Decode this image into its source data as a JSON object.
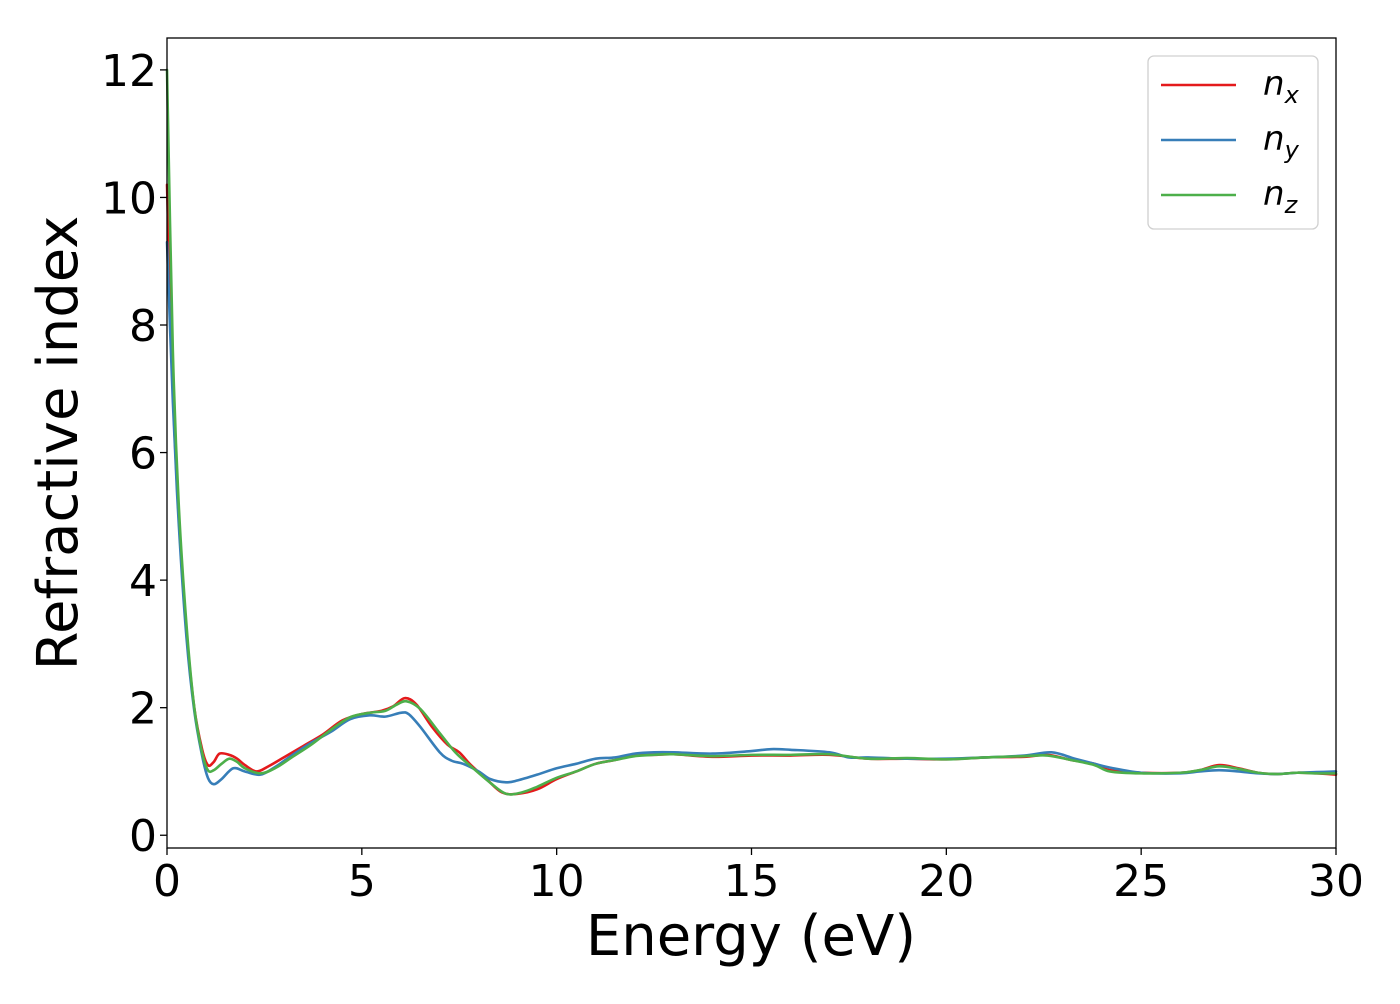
{
  "chart_data": {
    "type": "line",
    "title": "",
    "xlabel": "Energy (eV)",
    "ylabel": "Refractive index",
    "xlim": [
      0,
      30
    ],
    "ylim": [
      -0.2,
      12.5
    ],
    "xticks": [
      0,
      5,
      10,
      15,
      20,
      25,
      30
    ],
    "yticks": [
      0,
      2,
      4,
      6,
      8,
      10,
      12
    ],
    "grid": false,
    "legend_position": "top-right",
    "series": [
      {
        "name": "n_x",
        "label_main": "n",
        "label_sub": "x",
        "color": "#e41a1c",
        "points": [
          [
            0,
            10.2
          ],
          [
            0.15,
            7.0
          ],
          [
            0.3,
            5.0
          ],
          [
            0.5,
            3.2
          ],
          [
            0.7,
            2.0
          ],
          [
            0.9,
            1.35
          ],
          [
            1.05,
            1.1
          ],
          [
            1.2,
            1.15
          ],
          [
            1.35,
            1.28
          ],
          [
            1.6,
            1.26
          ],
          [
            1.8,
            1.2
          ],
          [
            2.0,
            1.1
          ],
          [
            2.3,
            1.0
          ],
          [
            2.6,
            1.08
          ],
          [
            3.0,
            1.22
          ],
          [
            3.5,
            1.4
          ],
          [
            4.0,
            1.58
          ],
          [
            4.5,
            1.8
          ],
          [
            5.0,
            1.9
          ],
          [
            5.5,
            1.95
          ],
          [
            5.8,
            2.02
          ],
          [
            6.1,
            2.15
          ],
          [
            6.4,
            2.05
          ],
          [
            6.8,
            1.7
          ],
          [
            7.2,
            1.42
          ],
          [
            7.5,
            1.3
          ],
          [
            7.8,
            1.1
          ],
          [
            8.2,
            0.88
          ],
          [
            8.6,
            0.67
          ],
          [
            9.0,
            0.65
          ],
          [
            9.5,
            0.72
          ],
          [
            10.0,
            0.88
          ],
          [
            10.5,
            1.0
          ],
          [
            11.0,
            1.12
          ],
          [
            11.5,
            1.18
          ],
          [
            12.0,
            1.25
          ],
          [
            12.5,
            1.26
          ],
          [
            13.0,
            1.27
          ],
          [
            14.0,
            1.23
          ],
          [
            15.0,
            1.25
          ],
          [
            16.0,
            1.25
          ],
          [
            17.0,
            1.26
          ],
          [
            18.0,
            1.2
          ],
          [
            19.0,
            1.2
          ],
          [
            20.0,
            1.19
          ],
          [
            21.0,
            1.22
          ],
          [
            22.0,
            1.23
          ],
          [
            22.6,
            1.26
          ],
          [
            23.2,
            1.18
          ],
          [
            23.8,
            1.12
          ],
          [
            24.2,
            1.02
          ],
          [
            25.0,
            0.98
          ],
          [
            26.0,
            0.98
          ],
          [
            26.5,
            1.02
          ],
          [
            27.0,
            1.1
          ],
          [
            27.5,
            1.05
          ],
          [
            28.0,
            0.98
          ],
          [
            28.5,
            0.96
          ],
          [
            29.0,
            0.98
          ],
          [
            29.5,
            0.97
          ],
          [
            30.0,
            0.95
          ]
        ]
      },
      {
        "name": "n_y",
        "label_main": "n",
        "label_sub": "y",
        "color": "#377eb8",
        "points": [
          [
            0,
            9.3
          ],
          [
            0.15,
            6.8
          ],
          [
            0.3,
            4.9
          ],
          [
            0.5,
            3.1
          ],
          [
            0.7,
            1.95
          ],
          [
            0.9,
            1.25
          ],
          [
            1.05,
            0.9
          ],
          [
            1.2,
            0.8
          ],
          [
            1.4,
            0.88
          ],
          [
            1.7,
            1.05
          ],
          [
            2.0,
            1.0
          ],
          [
            2.4,
            0.95
          ],
          [
            2.8,
            1.08
          ],
          [
            3.2,
            1.25
          ],
          [
            3.7,
            1.45
          ],
          [
            4.2,
            1.62
          ],
          [
            4.7,
            1.82
          ],
          [
            5.2,
            1.88
          ],
          [
            5.6,
            1.86
          ],
          [
            6.0,
            1.92
          ],
          [
            6.2,
            1.9
          ],
          [
            6.5,
            1.7
          ],
          [
            7.0,
            1.3
          ],
          [
            7.3,
            1.17
          ],
          [
            7.6,
            1.12
          ],
          [
            8.0,
            1.0
          ],
          [
            8.3,
            0.88
          ],
          [
            8.7,
            0.83
          ],
          [
            9.0,
            0.86
          ],
          [
            9.5,
            0.95
          ],
          [
            10.0,
            1.05
          ],
          [
            10.5,
            1.12
          ],
          [
            11.0,
            1.2
          ],
          [
            11.5,
            1.22
          ],
          [
            12.0,
            1.28
          ],
          [
            12.5,
            1.3
          ],
          [
            13.0,
            1.3
          ],
          [
            14.0,
            1.28
          ],
          [
            15.0,
            1.32
          ],
          [
            15.5,
            1.35
          ],
          [
            16.0,
            1.34
          ],
          [
            17.0,
            1.3
          ],
          [
            17.5,
            1.22
          ],
          [
            18.0,
            1.22
          ],
          [
            19.0,
            1.2
          ],
          [
            20.0,
            1.2
          ],
          [
            21.0,
            1.22
          ],
          [
            22.0,
            1.25
          ],
          [
            22.7,
            1.3
          ],
          [
            23.3,
            1.2
          ],
          [
            23.8,
            1.12
          ],
          [
            24.2,
            1.06
          ],
          [
            25.0,
            0.98
          ],
          [
            26.0,
            0.97
          ],
          [
            26.5,
            1.0
          ],
          [
            27.0,
            1.02
          ],
          [
            27.5,
            1.0
          ],
          [
            28.0,
            0.97
          ],
          [
            28.5,
            0.96
          ],
          [
            29.0,
            0.98
          ],
          [
            29.5,
            0.99
          ],
          [
            30.0,
            1.0
          ]
        ]
      },
      {
        "name": "n_z",
        "label_main": "n",
        "label_sub": "z",
        "color": "#4daf4a",
        "points": [
          [
            0,
            12.0
          ],
          [
            0.15,
            7.6
          ],
          [
            0.3,
            5.2
          ],
          [
            0.5,
            3.3
          ],
          [
            0.7,
            2.0
          ],
          [
            0.9,
            1.3
          ],
          [
            1.05,
            1.02
          ],
          [
            1.2,
            1.02
          ],
          [
            1.4,
            1.12
          ],
          [
            1.6,
            1.2
          ],
          [
            1.8,
            1.15
          ],
          [
            2.0,
            1.05
          ],
          [
            2.4,
            0.97
          ],
          [
            2.8,
            1.06
          ],
          [
            3.2,
            1.22
          ],
          [
            3.7,
            1.42
          ],
          [
            4.2,
            1.65
          ],
          [
            4.7,
            1.85
          ],
          [
            5.2,
            1.92
          ],
          [
            5.6,
            1.95
          ],
          [
            5.9,
            2.05
          ],
          [
            6.15,
            2.1
          ],
          [
            6.5,
            1.98
          ],
          [
            7.0,
            1.6
          ],
          [
            7.4,
            1.3
          ],
          [
            7.8,
            1.08
          ],
          [
            8.3,
            0.82
          ],
          [
            8.7,
            0.65
          ],
          [
            9.1,
            0.67
          ],
          [
            9.5,
            0.76
          ],
          [
            10.0,
            0.9
          ],
          [
            10.5,
            1.0
          ],
          [
            11.0,
            1.12
          ],
          [
            11.5,
            1.18
          ],
          [
            12.0,
            1.24
          ],
          [
            12.5,
            1.26
          ],
          [
            13.0,
            1.27
          ],
          [
            14.0,
            1.24
          ],
          [
            15.0,
            1.26
          ],
          [
            16.0,
            1.26
          ],
          [
            17.0,
            1.27
          ],
          [
            18.0,
            1.2
          ],
          [
            19.0,
            1.21
          ],
          [
            20.0,
            1.19
          ],
          [
            21.0,
            1.22
          ],
          [
            22.0,
            1.24
          ],
          [
            22.6,
            1.25
          ],
          [
            23.2,
            1.18
          ],
          [
            23.8,
            1.1
          ],
          [
            24.2,
            1.0
          ],
          [
            25.0,
            0.97
          ],
          [
            26.0,
            0.98
          ],
          [
            26.5,
            1.02
          ],
          [
            27.0,
            1.08
          ],
          [
            27.5,
            1.04
          ],
          [
            28.0,
            0.98
          ],
          [
            28.5,
            0.96
          ],
          [
            29.0,
            0.98
          ],
          [
            29.5,
            0.97
          ],
          [
            30.0,
            0.97
          ]
        ]
      }
    ]
  }
}
